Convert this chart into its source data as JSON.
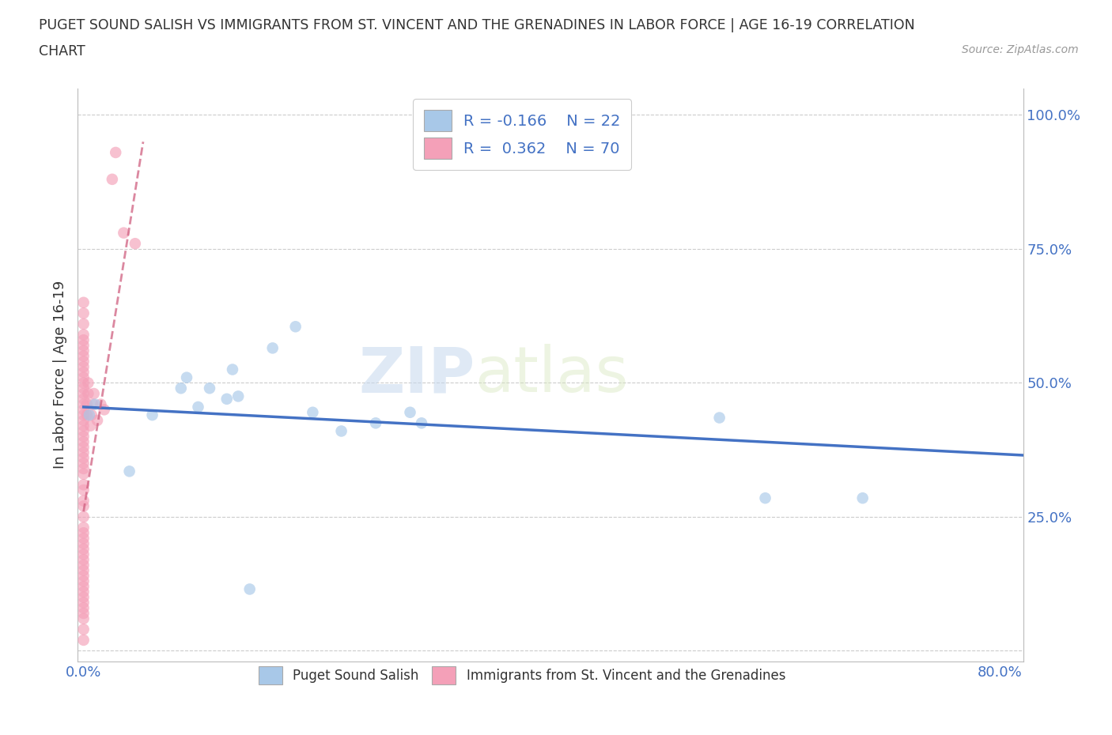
{
  "title_line1": "PUGET SOUND SALISH VS IMMIGRANTS FROM ST. VINCENT AND THE GRENADINES IN LABOR FORCE | AGE 16-19 CORRELATION",
  "title_line2": "CHART",
  "source": "Source: ZipAtlas.com",
  "ylabel": "In Labor Force | Age 16-19",
  "xlim": [
    -0.005,
    0.82
  ],
  "ylim": [
    -0.02,
    1.05
  ],
  "ytick_positions": [
    0.0,
    0.25,
    0.5,
    0.75,
    1.0
  ],
  "ytick_labels": [
    "",
    "25.0%",
    "50.0%",
    "75.0%",
    "100.0%"
  ],
  "xtick_positions": [
    0.0,
    0.1,
    0.2,
    0.3,
    0.4,
    0.5,
    0.6,
    0.7,
    0.8
  ],
  "xtick_labels": [
    "0.0%",
    "",
    "",
    "",
    "",
    "",
    "",
    "",
    "80.0%"
  ],
  "legend_r1": "R = -0.166",
  "legend_n1": "N = 22",
  "legend_r2": "R =  0.362",
  "legend_n2": "N = 70",
  "color_blue": "#a8c8e8",
  "color_pink": "#f4a0b8",
  "trendline_blue": "#4472c4",
  "trendline_pink": "#d06080",
  "watermark_zip": "ZIP",
  "watermark_atlas": "atlas",
  "blue_scatter_x": [
    0.005,
    0.01,
    0.04,
    0.06,
    0.085,
    0.09,
    0.1,
    0.11,
    0.125,
    0.13,
    0.135,
    0.145,
    0.165,
    0.185,
    0.2,
    0.225,
    0.255,
    0.285,
    0.295,
    0.555,
    0.595,
    0.68
  ],
  "blue_scatter_y": [
    0.44,
    0.46,
    0.335,
    0.44,
    0.49,
    0.51,
    0.455,
    0.49,
    0.47,
    0.525,
    0.475,
    0.115,
    0.565,
    0.605,
    0.445,
    0.41,
    0.425,
    0.445,
    0.425,
    0.435,
    0.285,
    0.285
  ],
  "pink_scatter_x": [
    0.0,
    0.0,
    0.0,
    0.0,
    0.0,
    0.0,
    0.0,
    0.0,
    0.0,
    0.0,
    0.0,
    0.0,
    0.0,
    0.0,
    0.0,
    0.0,
    0.0,
    0.0,
    0.0,
    0.0,
    0.0,
    0.0,
    0.0,
    0.0,
    0.0,
    0.0,
    0.0,
    0.0,
    0.0,
    0.0,
    0.0,
    0.0,
    0.0,
    0.0,
    0.0,
    0.0,
    0.0,
    0.0,
    0.0,
    0.0,
    0.0,
    0.0,
    0.0,
    0.0,
    0.0,
    0.0,
    0.0,
    0.0,
    0.0,
    0.0,
    0.0,
    0.0,
    0.0,
    0.0,
    0.0,
    0.003,
    0.003,
    0.004,
    0.004,
    0.006,
    0.007,
    0.008,
    0.009,
    0.012,
    0.015,
    0.018,
    0.025,
    0.028,
    0.035,
    0.045
  ],
  "pink_scatter_y": [
    0.02,
    0.04,
    0.06,
    0.07,
    0.08,
    0.09,
    0.1,
    0.11,
    0.12,
    0.13,
    0.14,
    0.15,
    0.16,
    0.17,
    0.18,
    0.19,
    0.2,
    0.21,
    0.22,
    0.23,
    0.25,
    0.27,
    0.28,
    0.3,
    0.31,
    0.33,
    0.34,
    0.35,
    0.36,
    0.37,
    0.38,
    0.39,
    0.4,
    0.41,
    0.42,
    0.43,
    0.44,
    0.45,
    0.46,
    0.47,
    0.48,
    0.49,
    0.5,
    0.51,
    0.52,
    0.53,
    0.54,
    0.55,
    0.56,
    0.57,
    0.58,
    0.59,
    0.61,
    0.63,
    0.65,
    0.44,
    0.46,
    0.48,
    0.5,
    0.42,
    0.44,
    0.46,
    0.48,
    0.43,
    0.46,
    0.45,
    0.88,
    0.93,
    0.78,
    0.76
  ],
  "blue_trend_x0": 0.0,
  "blue_trend_x1": 0.82,
  "blue_trend_y0": 0.455,
  "blue_trend_y1": 0.365,
  "pink_trend_x0": 0.0,
  "pink_trend_x1": 0.052,
  "pink_trend_y0": 0.26,
  "pink_trend_y1": 0.95
}
